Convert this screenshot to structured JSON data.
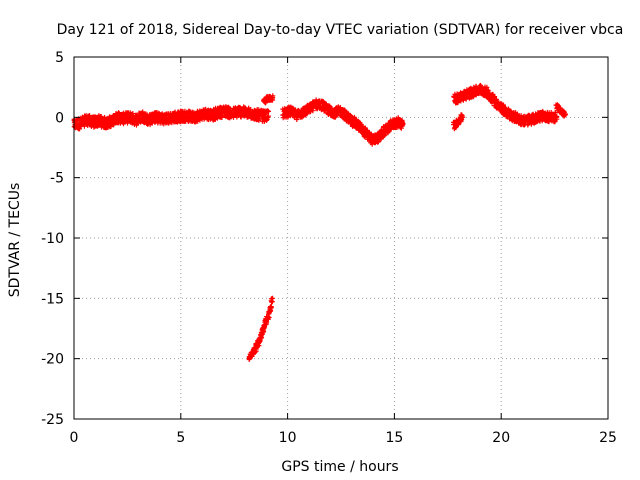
{
  "chart_data": {
    "type": "scatter",
    "title": "Day 121 of 2018, Sidereal Day-to-day VTEC variation (SDTVAR) for receiver vbca",
    "xlabel": "GPS time / hours",
    "ylabel": "SDTVAR / TECUs",
    "xlim": [
      0,
      25
    ],
    "ylim": [
      -25,
      5
    ],
    "xticks": [
      "0",
      "5",
      "10",
      "15",
      "20",
      "25"
    ],
    "yticks": [
      "5",
      "0",
      "-5",
      "-10",
      "-15",
      "-20",
      "-25"
    ],
    "grid": true,
    "legend": "none",
    "color": "#ff0000",
    "series": [
      {
        "name": "segment-a",
        "band": 0.45,
        "x": [
          0.0,
          0.3,
          0.6,
          0.9,
          1.2,
          1.5,
          1.8,
          2.0,
          2.3,
          2.6,
          2.9,
          3.2,
          3.5,
          3.8,
          4.1,
          4.4,
          4.7,
          5.0,
          5.3,
          5.6,
          5.9,
          6.2,
          6.5,
          6.8,
          7.1,
          7.4,
          7.7,
          8.0,
          8.3,
          8.6,
          8.9,
          9.1
        ],
        "y": [
          -0.6,
          -0.5,
          -0.2,
          -0.4,
          -0.3,
          -0.5,
          -0.3,
          0.0,
          -0.1,
          0.0,
          -0.2,
          0.1,
          -0.2,
          0.0,
          -0.1,
          -0.1,
          0.0,
          0.1,
          0.1,
          0.0,
          0.2,
          0.3,
          0.2,
          0.4,
          0.5,
          0.3,
          0.5,
          0.4,
          0.3,
          0.2,
          0.1,
          0.1
        ]
      },
      {
        "name": "segment-b",
        "band": 0.2,
        "x": [
          8.9,
          9.1,
          9.3
        ],
        "y": [
          1.3,
          1.6,
          1.6
        ]
      },
      {
        "name": "segment-c",
        "band": 0.4,
        "x": [
          9.8,
          10.1,
          10.4,
          10.7,
          11.0,
          11.3,
          11.6,
          11.9,
          12.2,
          12.5,
          12.8,
          13.1,
          13.4,
          13.7,
          14.0,
          14.3,
          14.6,
          14.9,
          15.2,
          15.4
        ],
        "y": [
          0.3,
          0.5,
          0.2,
          0.4,
          0.7,
          1.1,
          1.0,
          0.6,
          0.4,
          0.5,
          0.0,
          -0.4,
          -0.8,
          -1.4,
          -1.9,
          -1.6,
          -1.0,
          -0.6,
          -0.4,
          -0.6
        ]
      },
      {
        "name": "segment-d",
        "band": 0.25,
        "x": [
          8.2,
          8.4,
          8.6,
          8.8,
          9.0,
          9.2,
          9.3
        ],
        "y": [
          -20.0,
          -19.5,
          -18.8,
          -17.9,
          -16.9,
          -15.9,
          -15.0
        ]
      },
      {
        "name": "segment-e",
        "band": 0.4,
        "x": [
          17.8,
          18.1,
          18.4,
          18.7,
          19.0,
          19.3,
          19.6,
          19.9,
          20.2,
          20.5,
          20.8,
          21.1,
          21.4,
          21.7,
          22.0,
          22.3,
          22.6
        ],
        "y": [
          1.5,
          1.7,
          1.9,
          2.1,
          2.3,
          2.1,
          1.6,
          0.9,
          0.5,
          0.1,
          -0.1,
          -0.3,
          -0.2,
          0.0,
          0.1,
          0.0,
          0.0
        ]
      },
      {
        "name": "segment-f",
        "band": 0.3,
        "x": [
          17.8,
          18.0,
          18.2
        ],
        "y": [
          -0.7,
          -0.3,
          0.0
        ]
      },
      {
        "name": "segment-g",
        "band": 0.2,
        "x": [
          22.6,
          22.8,
          23.0
        ],
        "y": [
          0.9,
          0.5,
          0.2
        ]
      }
    ]
  }
}
